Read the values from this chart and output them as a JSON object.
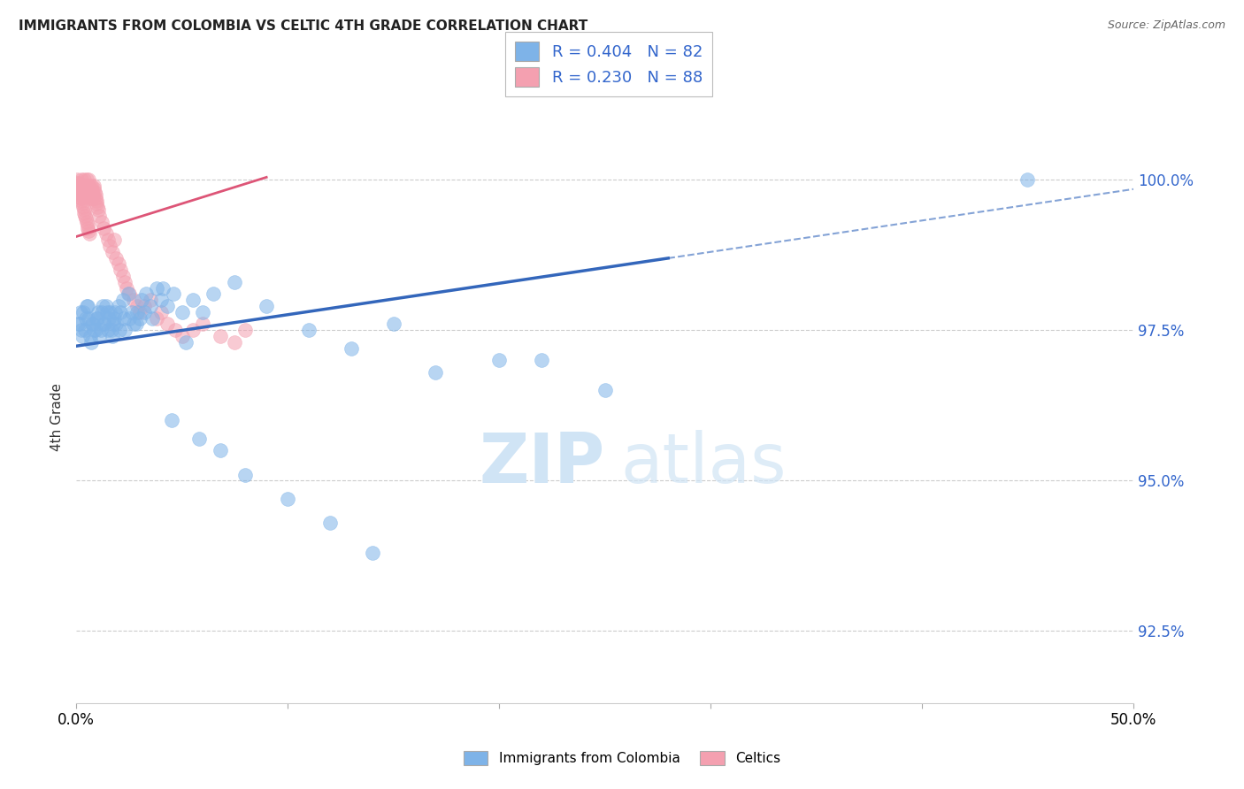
{
  "title": "IMMIGRANTS FROM COLOMBIA VS CELTIC 4TH GRADE CORRELATION CHART",
  "source": "Source: ZipAtlas.com",
  "ylabel": "4th Grade",
  "ylabel_ticks": [
    "92.5%",
    "95.0%",
    "97.5%",
    "100.0%"
  ],
  "ylabel_tick_vals": [
    92.5,
    95.0,
    97.5,
    100.0
  ],
  "xmin": 0.0,
  "xmax": 50.0,
  "ymin": 91.3,
  "ymax": 100.8,
  "blue_color": "#7EB3E8",
  "pink_color": "#F4A0B0",
  "blue_line_color": "#3366BB",
  "pink_line_color": "#DD5577",
  "legend_blue_label": "Immigrants from Colombia",
  "legend_pink_label": "Celtics",
  "r_blue": 0.404,
  "n_blue": 82,
  "r_pink": 0.23,
  "n_pink": 88,
  "grid_color": "#CCCCCC",
  "background_color": "#FFFFFF",
  "blue_scatter_x": [
    0.1,
    0.2,
    0.3,
    0.4,
    0.5,
    0.6,
    0.7,
    0.8,
    0.9,
    1.0,
    1.1,
    1.2,
    1.3,
    1.4,
    1.5,
    1.6,
    1.7,
    1.8,
    1.9,
    2.0,
    2.1,
    2.2,
    2.3,
    2.5,
    2.7,
    2.9,
    3.1,
    3.3,
    3.5,
    3.8,
    4.0,
    4.3,
    4.6,
    5.0,
    5.5,
    6.0,
    6.5,
    7.5,
    9.0,
    11.0,
    13.0,
    15.0,
    17.0,
    20.0,
    25.0,
    0.15,
    0.25,
    0.35,
    0.45,
    0.55,
    0.65,
    0.75,
    0.85,
    0.95,
    1.05,
    1.15,
    1.25,
    1.35,
    1.45,
    1.55,
    1.65,
    1.75,
    1.85,
    2.05,
    2.25,
    2.45,
    2.65,
    2.85,
    3.0,
    3.2,
    3.6,
    4.1,
    4.5,
    5.2,
    5.8,
    6.8,
    8.0,
    10.0,
    12.0,
    14.0,
    22.0,
    45.0
  ],
  "blue_scatter_y": [
    97.6,
    97.8,
    97.4,
    97.5,
    97.9,
    97.7,
    97.3,
    97.6,
    97.5,
    97.7,
    97.4,
    97.8,
    97.6,
    97.9,
    97.5,
    97.8,
    97.4,
    97.7,
    97.6,
    97.9,
    97.8,
    98.0,
    97.5,
    97.7,
    97.6,
    97.8,
    98.0,
    98.1,
    97.9,
    98.2,
    98.0,
    97.9,
    98.1,
    97.8,
    98.0,
    97.8,
    98.1,
    98.3,
    97.9,
    97.5,
    97.2,
    97.6,
    96.8,
    97.0,
    96.5,
    97.6,
    97.5,
    97.8,
    97.7,
    97.9,
    97.4,
    97.6,
    97.5,
    97.7,
    97.8,
    97.5,
    97.9,
    97.6,
    97.8,
    97.7,
    97.5,
    97.6,
    97.8,
    97.5,
    97.7,
    98.1,
    97.8,
    97.6,
    97.7,
    97.8,
    97.7,
    98.2,
    96.0,
    97.3,
    95.7,
    95.5,
    95.1,
    94.7,
    94.3,
    93.8,
    97.0,
    100.0
  ],
  "pink_scatter_x": [
    0.05,
    0.08,
    0.1,
    0.12,
    0.15,
    0.18,
    0.2,
    0.22,
    0.25,
    0.28,
    0.3,
    0.32,
    0.35,
    0.38,
    0.4,
    0.42,
    0.45,
    0.48,
    0.5,
    0.52,
    0.55,
    0.58,
    0.6,
    0.62,
    0.65,
    0.68,
    0.7,
    0.72,
    0.75,
    0.78,
    0.8,
    0.82,
    0.85,
    0.88,
    0.9,
    0.92,
    0.95,
    0.98,
    1.0,
    1.05,
    1.1,
    1.2,
    1.3,
    1.4,
    1.5,
    1.6,
    1.7,
    1.8,
    1.9,
    2.0,
    2.1,
    2.2,
    2.3,
    2.4,
    2.5,
    2.7,
    2.9,
    3.0,
    3.2,
    3.5,
    3.8,
    4.0,
    4.3,
    4.7,
    5.0,
    5.5,
    6.0,
    6.8,
    7.5,
    8.0,
    0.06,
    0.09,
    0.13,
    0.16,
    0.19,
    0.23,
    0.26,
    0.29,
    0.33,
    0.36,
    0.39,
    0.43,
    0.46,
    0.49,
    0.53,
    0.56,
    0.59,
    0.63
  ],
  "pink_scatter_y": [
    100.0,
    99.95,
    99.9,
    99.85,
    99.8,
    99.75,
    99.7,
    99.9,
    100.0,
    99.85,
    99.9,
    99.8,
    99.75,
    100.0,
    99.9,
    99.85,
    99.8,
    99.75,
    100.0,
    99.9,
    99.85,
    100.0,
    99.9,
    99.8,
    99.75,
    99.7,
    99.9,
    99.85,
    99.8,
    99.75,
    99.7,
    99.9,
    99.85,
    99.8,
    99.75,
    99.7,
    99.65,
    99.6,
    99.55,
    99.5,
    99.4,
    99.3,
    99.2,
    99.1,
    99.0,
    98.9,
    98.8,
    99.0,
    98.7,
    98.6,
    98.5,
    98.4,
    98.3,
    98.2,
    98.1,
    98.0,
    97.9,
    97.8,
    97.9,
    98.0,
    97.7,
    97.8,
    97.6,
    97.5,
    97.4,
    97.5,
    97.6,
    97.4,
    97.3,
    97.5,
    99.95,
    99.9,
    99.85,
    99.8,
    99.75,
    99.7,
    99.65,
    99.6,
    99.55,
    99.5,
    99.45,
    99.4,
    99.35,
    99.3,
    99.25,
    99.2,
    99.15,
    99.1
  ]
}
